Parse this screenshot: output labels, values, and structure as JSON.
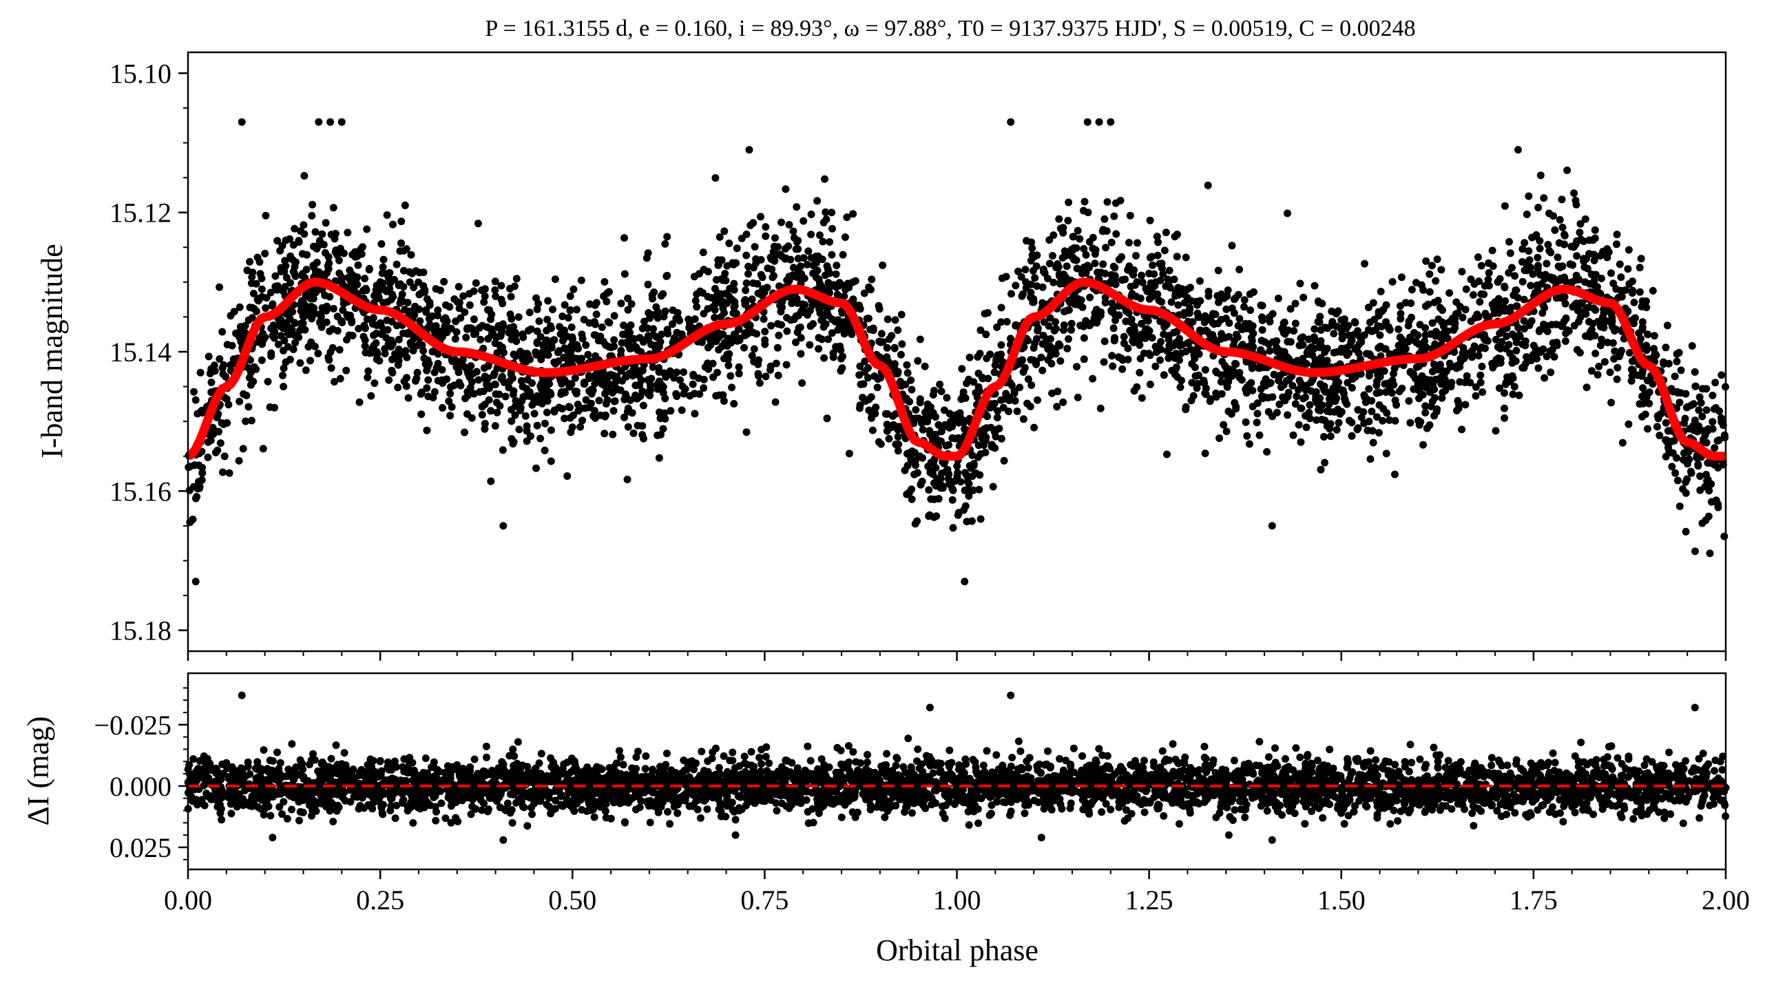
{
  "chart_data": [
    {
      "type": "scatter",
      "title": "P = 161.3155 d, e = 0.160, i = 89.93°, ω = 97.88°, T0 = 9137.9375 HJD', S = 0.00519, C = 0.00248",
      "xlabel": "",
      "ylabel": "I-band magnitude",
      "xlim": [
        0.0,
        2.0
      ],
      "ylim": [
        15.183,
        15.097
      ],
      "y_inverted": true,
      "ytick_labels": [
        "15.10",
        "15.12",
        "15.14",
        "15.16",
        "15.18"
      ],
      "grid": false,
      "colors": {
        "points": "#000000",
        "model": "#ff0000"
      },
      "model_curve": {
        "name": "",
        "x": [
          0.0,
          0.05,
          0.1,
          0.165,
          0.25,
          0.35,
          0.465,
          0.6,
          0.7,
          0.79,
          0.85,
          0.9,
          0.95,
          0.985,
          1.0
        ],
        "y": [
          15.155,
          15.145,
          15.135,
          15.13,
          15.134,
          15.14,
          15.143,
          15.141,
          15.136,
          15.131,
          15.133,
          15.142,
          15.153,
          15.155,
          15.155
        ],
        "repeats_every": 1.0
      },
      "points": {
        "description_of_envelope": "",
        "binned_phase": [
          0.0,
          0.05,
          0.1,
          0.17,
          0.25,
          0.35,
          0.47,
          0.6,
          0.7,
          0.79,
          0.85,
          0.9,
          0.95,
          0.99,
          1.0
        ],
        "binned_median": [
          15.155,
          15.145,
          15.135,
          15.13,
          15.134,
          15.14,
          15.143,
          15.141,
          15.136,
          15.131,
          15.133,
          15.142,
          15.153,
          15.156,
          15.155
        ],
        "scatter_sd": 0.0055,
        "outliers": [
          {
            "x": 0.07,
            "y": 15.107
          },
          {
            "x": 0.17,
            "y": 15.107
          },
          {
            "x": 0.185,
            "y": 15.107
          },
          {
            "x": 0.2,
            "y": 15.107
          },
          {
            "x": 0.41,
            "y": 15.165
          },
          {
            "x": 0.01,
            "y": 15.173
          },
          {
            "x": 1.07,
            "y": 15.107
          },
          {
            "x": 1.17,
            "y": 15.107
          },
          {
            "x": 1.185,
            "y": 15.107
          },
          {
            "x": 1.2,
            "y": 15.107
          },
          {
            "x": 1.41,
            "y": 15.165
          },
          {
            "x": 1.01,
            "y": 15.173
          },
          {
            "x": 0.73,
            "y": 15.111
          },
          {
            "x": 1.73,
            "y": 15.111
          }
        ]
      }
    },
    {
      "type": "scatter",
      "xlabel": "Orbital phase",
      "ylabel": "ΔI (mag)",
      "xlim": [
        0.0,
        2.0
      ],
      "ylim": [
        0.034,
        -0.046
      ],
      "y_inverted": true,
      "xtick_labels": [
        "0.00",
        "0.25",
        "0.50",
        "0.75",
        "1.00",
        "1.25",
        "1.50",
        "1.75",
        "2.00"
      ],
      "ytick_labels": [
        "−0.025",
        "0.000",
        "0.025"
      ],
      "grid": false,
      "zero_line": {
        "y": 0.0,
        "style": "dashed",
        "color": "#ff0000"
      },
      "residuals": {
        "mean": 0.0,
        "scatter_sd": 0.0055,
        "outliers": [
          {
            "x": 0.07,
            "y": -0.037
          },
          {
            "x": 1.07,
            "y": -0.037
          },
          {
            "x": 0.965,
            "y": -0.032
          },
          {
            "x": 1.96,
            "y": -0.032
          },
          {
            "x": 0.41,
            "y": 0.022
          },
          {
            "x": 1.41,
            "y": 0.022
          },
          {
            "x": 0.11,
            "y": 0.021
          },
          {
            "x": 1.11,
            "y": 0.021
          }
        ]
      }
    }
  ]
}
